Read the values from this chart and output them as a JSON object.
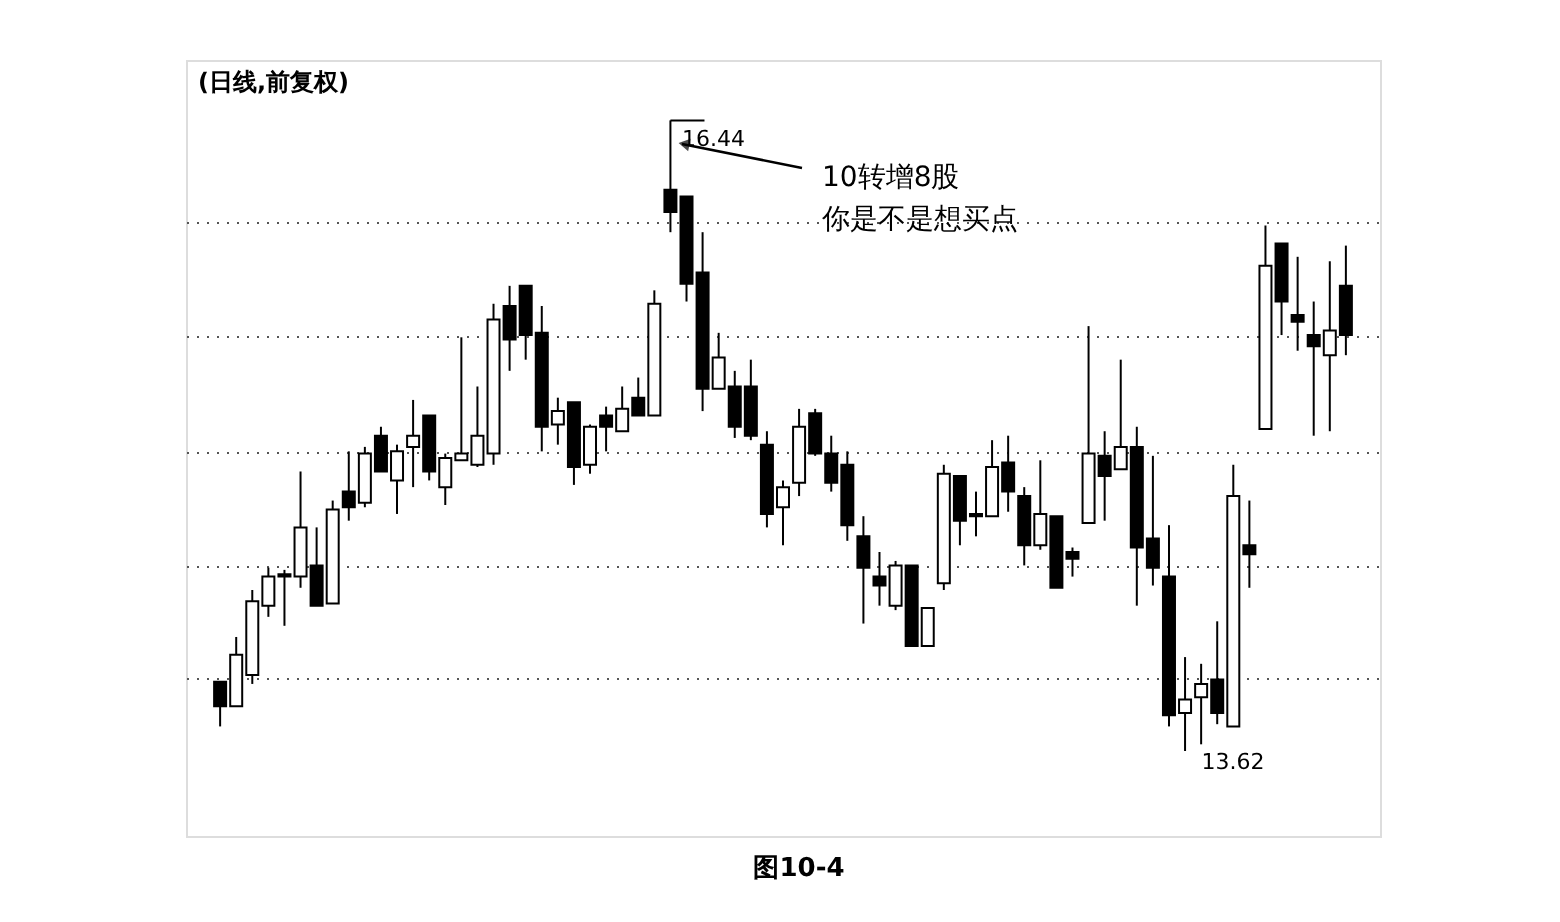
{
  "chart_data": {
    "type": "candlestick",
    "title": "(日线,前复权)",
    "categories": [
      null,
      null,
      null,
      null,
      null,
      null,
      null,
      null,
      null,
      null,
      null,
      null,
      null,
      null,
      null,
      null,
      null,
      null,
      null,
      null,
      null,
      null,
      null,
      null,
      null,
      null,
      null,
      null,
      null,
      null,
      null,
      null,
      null,
      null,
      null,
      null,
      null,
      null,
      null,
      null,
      null,
      null,
      null,
      null,
      null,
      null,
      null,
      null,
      null,
      null,
      null,
      null,
      null,
      null,
      null,
      null,
      null,
      null,
      null,
      null,
      null,
      null,
      null,
      null,
      null,
      null,
      null,
      null,
      null,
      null,
      null
    ],
    "ohlc": [
      [
        13.93,
        13.93,
        13.73,
        13.82
      ],
      [
        13.82,
        14.13,
        13.82,
        14.05
      ],
      [
        13.96,
        14.34,
        13.92,
        14.29
      ],
      [
        14.27,
        14.44,
        14.22,
        14.4
      ],
      [
        14.41,
        14.43,
        14.18,
        14.4
      ],
      [
        14.4,
        14.87,
        14.35,
        14.62
      ],
      [
        14.45,
        14.62,
        14.27,
        14.27
      ],
      [
        14.28,
        14.74,
        14.28,
        14.7
      ],
      [
        14.78,
        14.96,
        14.65,
        14.71
      ],
      [
        14.73,
        14.98,
        14.71,
        14.95
      ],
      [
        15.03,
        15.07,
        14.87,
        14.87
      ],
      [
        14.83,
        14.99,
        14.68,
        14.96
      ],
      [
        14.98,
        15.19,
        14.8,
        15.03
      ],
      [
        15.12,
        15.12,
        14.83,
        14.87
      ],
      [
        14.8,
        14.95,
        14.72,
        14.93
      ],
      [
        14.92,
        15.47,
        14.92,
        14.95
      ],
      [
        14.9,
        15.25,
        14.89,
        15.03
      ],
      [
        14.95,
        15.62,
        14.9,
        15.55
      ],
      [
        15.61,
        15.7,
        15.32,
        15.46
      ],
      [
        15.7,
        15.7,
        15.37,
        15.48
      ],
      [
        15.49,
        15.61,
        14.96,
        15.07
      ],
      [
        15.08,
        15.2,
        14.99,
        15.14
      ],
      [
        15.18,
        15.18,
        14.81,
        14.89
      ],
      [
        14.9,
        15.08,
        14.86,
        15.07
      ],
      [
        15.12,
        15.16,
        14.96,
        15.07
      ],
      [
        15.05,
        15.25,
        15.05,
        15.15
      ],
      [
        15.2,
        15.29,
        15.12,
        15.12
      ],
      [
        15.12,
        15.68,
        15.12,
        15.62
      ],
      [
        16.13,
        16.44,
        15.94,
        16.03
      ],
      [
        16.1,
        16.1,
        15.63,
        15.71
      ],
      [
        15.76,
        15.94,
        15.14,
        15.24
      ],
      [
        15.24,
        15.49,
        15.24,
        15.38
      ],
      [
        15.25,
        15.32,
        15.02,
        15.07
      ],
      [
        15.25,
        15.37,
        15.01,
        15.03
      ],
      [
        14.99,
        15.05,
        14.62,
        14.68
      ],
      [
        14.71,
        14.83,
        14.54,
        14.8
      ],
      [
        14.82,
        15.15,
        14.76,
        15.07
      ],
      [
        15.13,
        15.15,
        14.94,
        14.95
      ],
      [
        14.95,
        15.03,
        14.78,
        14.82
      ],
      [
        14.9,
        14.96,
        14.56,
        14.63
      ],
      [
        14.58,
        14.67,
        14.19,
        14.44
      ],
      [
        14.4,
        14.51,
        14.27,
        14.36
      ],
      [
        14.27,
        14.47,
        14.25,
        14.45
      ],
      [
        14.45,
        14.45,
        14.09,
        14.09
      ],
      [
        14.09,
        14.26,
        14.09,
        14.26
      ],
      [
        14.37,
        14.9,
        14.34,
        14.86
      ],
      [
        14.85,
        14.85,
        14.54,
        14.65
      ],
      [
        14.68,
        14.78,
        14.58,
        14.67
      ],
      [
        14.67,
        15.01,
        14.67,
        14.89
      ],
      [
        14.91,
        15.03,
        14.69,
        14.78
      ],
      [
        14.76,
        14.8,
        14.45,
        14.54
      ],
      [
        14.54,
        14.92,
        14.52,
        14.68
      ],
      [
        14.67,
        14.67,
        14.35,
        14.35
      ],
      [
        14.51,
        14.53,
        14.4,
        14.48
      ],
      [
        14.64,
        15.52,
        14.64,
        14.95
      ],
      [
        14.94,
        15.05,
        14.65,
        14.85
      ],
      [
        14.88,
        15.37,
        14.88,
        14.98
      ],
      [
        14.98,
        15.07,
        14.27,
        14.53
      ],
      [
        14.57,
        14.94,
        14.36,
        14.44
      ],
      [
        14.4,
        14.63,
        13.73,
        13.78
      ],
      [
        13.79,
        14.04,
        13.62,
        13.85
      ],
      [
        13.86,
        14.01,
        13.65,
        13.92
      ],
      [
        13.94,
        14.2,
        13.74,
        13.79
      ],
      [
        13.73,
        14.9,
        13.73,
        14.76
      ],
      [
        14.54,
        14.74,
        14.35,
        14.5
      ],
      [
        15.06,
        15.97,
        15.06,
        15.79
      ],
      [
        15.89,
        15.89,
        15.48,
        15.63
      ],
      [
        15.57,
        15.83,
        15.41,
        15.54
      ],
      [
        15.48,
        15.63,
        15.03,
        15.43
      ],
      [
        15.39,
        15.81,
        15.05,
        15.5
      ],
      [
        15.7,
        15.88,
        15.39,
        15.48
      ]
    ],
    "ylim": [
      13.24,
      16.71
    ],
    "yticks": [
      {
        "value": 13.95,
        "label": null
      },
      {
        "value": 14.45,
        "label": null
      },
      {
        "value": 14.96,
        "label": null
      },
      {
        "value": 15.48,
        "label": null
      },
      {
        "value": 15.99,
        "label": null
      }
    ],
    "grid": "y",
    "tick_labels": false,
    "annotations": [
      "16.44",
      "13.62",
      "10转增8股",
      "你是不是想买点",
      "图10-4"
    ]
  }
}
